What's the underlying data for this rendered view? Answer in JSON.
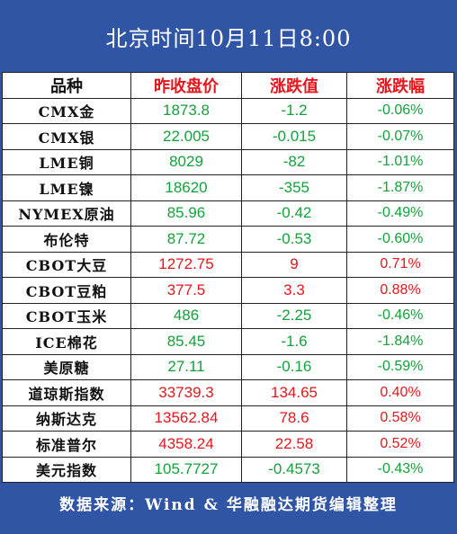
{
  "header": {
    "title": "北京时间10月11日8:00"
  },
  "table": {
    "headers": [
      "品种",
      "昨收盘价",
      "涨跌值",
      "涨跌幅"
    ],
    "rows": [
      {
        "name": "CMX金",
        "close": "1873.8",
        "change": "-1.2",
        "pct": "-0.06%",
        "dir": "down"
      },
      {
        "name": "CMX银",
        "close": "22.005",
        "change": "-0.015",
        "pct": "-0.07%",
        "dir": "down"
      },
      {
        "name": "LME铜",
        "close": "8029",
        "change": "-82",
        "pct": "-1.01%",
        "dir": "down"
      },
      {
        "name": "LME镍",
        "close": "18620",
        "change": "-355",
        "pct": "-1.87%",
        "dir": "down"
      },
      {
        "name": "NYMEX原油",
        "close": "85.96",
        "change": "-0.42",
        "pct": "-0.49%",
        "dir": "down"
      },
      {
        "name": "布伦特",
        "close": "87.72",
        "change": "-0.53",
        "pct": "-0.60%",
        "dir": "down"
      },
      {
        "name": "CBOT大豆",
        "close": "1272.75",
        "change": "9",
        "pct": "0.71%",
        "dir": "up"
      },
      {
        "name": "CBOT豆粕",
        "close": "377.5",
        "change": "3.3",
        "pct": "0.88%",
        "dir": "up"
      },
      {
        "name": "CBOT玉米",
        "close": "486",
        "change": "-2.25",
        "pct": "-0.46%",
        "dir": "down"
      },
      {
        "name": "ICE棉花",
        "close": "85.45",
        "change": "-1.6",
        "pct": "-1.84%",
        "dir": "down"
      },
      {
        "name": "美原糖",
        "close": "27.11",
        "change": "-0.16",
        "pct": "-0.59%",
        "dir": "down"
      },
      {
        "name": "道琼斯指数",
        "close": "33739.3",
        "change": "134.65",
        "pct": "0.40%",
        "dir": "up"
      },
      {
        "name": "纳斯达克",
        "close": "13562.84",
        "change": "78.6",
        "pct": "0.58%",
        "dir": "up"
      },
      {
        "name": "标准普尔",
        "close": "4358.24",
        "change": "22.58",
        "pct": "0.52%",
        "dir": "up"
      },
      {
        "name": "美元指数",
        "close": "105.7727",
        "change": "-0.4573",
        "pct": "-0.43%",
        "dir": "down"
      }
    ]
  },
  "footer": {
    "source": "数据来源：Wind & 华融融达期货编辑整理"
  },
  "colors": {
    "background": "#2f55a4",
    "up": "#e5171c",
    "down": "#13a23a"
  }
}
